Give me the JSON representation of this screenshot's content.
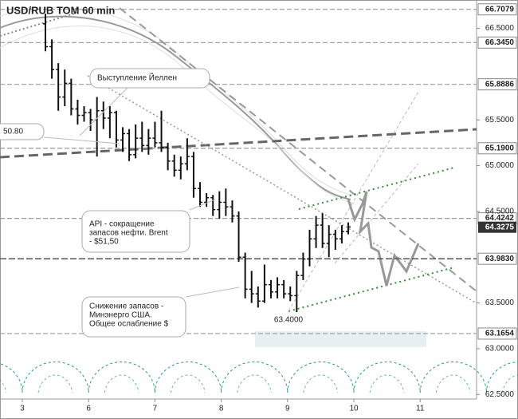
{
  "chart_data": {
    "type": "ohlc",
    "title": "USD/RUB TOM 60 min",
    "categories": [
      "3",
      "6",
      "7",
      "8",
      "9",
      "10",
      "11"
    ],
    "ylim": [
      62.45,
      66.81
    ],
    "yticks": [
      {
        "value": 66.5,
        "label": "66.5000"
      },
      {
        "value": 65.5,
        "label": "65.5000"
      },
      {
        "value": 65.0,
        "label": "65.0000"
      },
      {
        "value": 64.5,
        "label": "64.5000"
      },
      {
        "value": 63.5,
        "label": "63.5000"
      },
      {
        "value": 63.0,
        "label": "63.0000"
      },
      {
        "value": 62.5,
        "label": "62.5000"
      }
    ],
    "levels": [
      {
        "value": 66.7079,
        "label": "66.7079"
      },
      {
        "value": 66.345,
        "label": "66.3450"
      },
      {
        "value": 65.8886,
        "label": "65.8886"
      },
      {
        "value": 65.19,
        "label": "65.1900"
      },
      {
        "value": 64.4242,
        "label": "64.4242"
      },
      {
        "value": 63.983,
        "label": "63.9830"
      },
      {
        "value": 63.1654,
        "label": "63.1654"
      }
    ],
    "current": {
      "value": 64.3275,
      "label": "64.3275"
    },
    "low_label": {
      "value": 63.4,
      "label": "63.4000"
    },
    "left_label": "50.80",
    "annotations": [
      {
        "lines": [
          "Выступление Йеллен"
        ]
      },
      {
        "lines": [
          "API - сокращение",
          "запасов нефти. Brent",
          "- $51,50"
        ]
      },
      {
        "lines": [
          "Снижение запасов -",
          "Минэнерго США.",
          "Общее ослабление $"
        ]
      }
    ],
    "bars": [
      [
        66.55,
        66.66,
        66.25,
        66.3
      ],
      [
        66.3,
        66.38,
        65.95,
        66.05
      ],
      [
        66.05,
        66.12,
        65.6,
        65.75
      ],
      [
        65.75,
        66.05,
        65.65,
        65.9
      ],
      [
        65.9,
        65.95,
        65.55,
        65.62
      ],
      [
        65.62,
        65.72,
        65.45,
        65.55
      ],
      [
        65.55,
        65.65,
        65.48,
        65.58
      ],
      [
        65.58,
        65.62,
        65.38,
        65.5
      ],
      [
        65.5,
        65.75,
        65.1,
        65.6
      ],
      [
        65.6,
        65.7,
        65.4,
        65.52
      ],
      [
        65.52,
        65.65,
        65.3,
        65.58
      ],
      [
        65.58,
        65.6,
        65.2,
        65.28
      ],
      [
        65.28,
        65.42,
        65.15,
        65.35
      ],
      [
        65.35,
        65.4,
        65.05,
        65.12
      ],
      [
        65.12,
        65.45,
        65.08,
        65.3
      ],
      [
        65.3,
        65.48,
        65.15,
        65.22
      ],
      [
        65.22,
        65.4,
        65.12,
        65.3
      ],
      [
        65.3,
        65.48,
        65.2,
        65.25
      ],
      [
        65.25,
        65.6,
        65.15,
        65.2
      ],
      [
        65.2,
        65.25,
        64.95,
        65.05
      ],
      [
        65.05,
        65.12,
        64.88,
        64.95
      ],
      [
        64.95,
        65.1,
        64.85,
        65.02
      ],
      [
        65.02,
        65.3,
        64.95,
        65.1
      ],
      [
        65.1,
        65.15,
        64.65,
        64.75
      ],
      [
        64.75,
        64.82,
        64.55,
        64.6
      ],
      [
        64.6,
        64.7,
        64.55,
        64.65
      ],
      [
        64.65,
        64.68,
        64.45,
        64.52
      ],
      [
        64.52,
        64.72,
        64.42,
        64.6
      ],
      [
        64.6,
        64.75,
        64.45,
        64.55
      ],
      [
        64.55,
        64.62,
        64.38,
        64.45
      ],
      [
        64.45,
        64.5,
        63.95,
        64.0
      ],
      [
        64.0,
        64.05,
        63.55,
        63.65
      ],
      [
        63.65,
        63.85,
        63.5,
        63.6
      ],
      [
        63.6,
        63.68,
        63.45,
        63.52
      ],
      [
        63.52,
        63.92,
        63.5,
        63.7
      ],
      [
        63.7,
        63.75,
        63.55,
        63.62
      ],
      [
        63.62,
        63.78,
        63.55,
        63.7
      ],
      [
        63.7,
        63.75,
        63.55,
        63.6
      ],
      [
        63.6,
        63.68,
        63.52,
        63.58
      ],
      [
        63.58,
        63.85,
        63.4,
        63.8
      ],
      [
        63.8,
        64.05,
        63.75,
        63.98
      ],
      [
        63.98,
        64.3,
        63.9,
        64.2
      ],
      [
        64.2,
        64.45,
        64.1,
        64.35
      ],
      [
        64.35,
        64.48,
        64.1,
        64.15
      ],
      [
        64.15,
        64.35,
        64.0,
        64.25
      ],
      [
        64.25,
        64.3,
        64.08,
        64.2
      ],
      [
        64.2,
        64.35,
        64.15,
        64.28
      ],
      [
        64.28,
        64.38,
        64.25,
        64.33
      ]
    ]
  }
}
